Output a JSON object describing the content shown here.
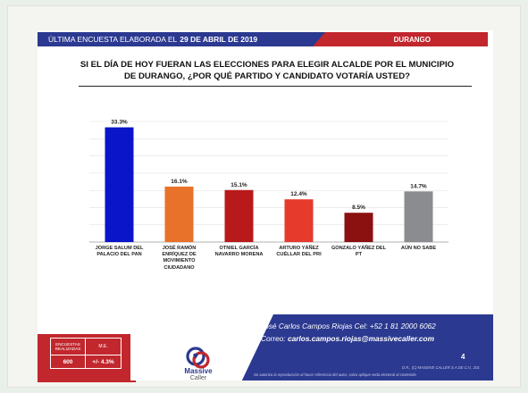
{
  "header": {
    "label": "ÚLTIMA ENCUESTA ELABORADA EL",
    "date": "29 DE ABRIL DE 2019",
    "region": "DURANGO"
  },
  "question_lines": [
    "SI EL DÍA DE HOY FUERAN LAS ELECCIONES PARA ELEGIR ALCALDE POR EL MUNICIPIO",
    "DE DURANGO, ¿POR QUÉ PARTIDO Y CANDIDATO VOTARÍA USTED?"
  ],
  "chart_data": {
    "type": "bar",
    "categories": [
      [
        "JORGE SALUM DEL",
        "PALACIO DEL PAN"
      ],
      [
        "JOSÉ RAMÓN",
        "ENRÍQUEZ DE",
        "MOVIMIENTO",
        "CIUDADANO"
      ],
      [
        "OTNIEL GARCÍA",
        "NAVARRO MORENA"
      ],
      [
        "ARTURO YÁÑEZ",
        "CUÉLLAR DEL PRI"
      ],
      [
        "GONZALO YÁÑEZ DEL",
        "PT"
      ],
      [
        "AÚN NO SABE"
      ]
    ],
    "values": [
      33.3,
      16.1,
      15.1,
      12.4,
      8.5,
      14.7
    ],
    "value_labels": [
      "33.3%",
      "16.1%",
      "15.1%",
      "12.4%",
      "8.5%",
      "14.7%"
    ],
    "colors": [
      "#0a14c8",
      "#e8722a",
      "#b8191a",
      "#e63a2c",
      "#8b1010",
      "#8a8c8f"
    ],
    "ylim": [
      0,
      35
    ],
    "grid": true
  },
  "footer": {
    "contact_phone": "José Carlos Campos Riojas Cel: +52 1 81 2000 6062",
    "contact_email_label": "Correo:",
    "contact_email": "carlos.campos.riojas@massivecaller.com",
    "page_number": "4",
    "legal_1": "D.R., (C) MASSIVE CALLER S.A DE C.V., 201",
    "legal_2": "Se autoriza la reproducción al hacer referencia del autor, salvo aplique veda electoral al contenido",
    "stats": {
      "h1_line1": "ENCUESTAS",
      "h1_line2": "REALIZADAS",
      "h2": "M.E.",
      "v1": "600",
      "v2": "+/- 4.3%"
    },
    "logo_line1": "Massive",
    "logo_line2": "Caller"
  }
}
